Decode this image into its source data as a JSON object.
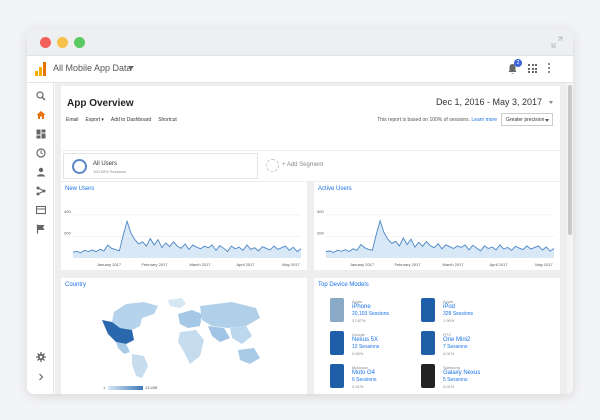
{
  "app": {
    "account_name": "All Mobile App Data",
    "notification_count": "2"
  },
  "report": {
    "title": "App Overview",
    "date_range": "Dec 1, 2016 - May 3, 2017",
    "toolbar": [
      "Email",
      "Export ▾",
      "Add to Dashboard",
      "Shortcut"
    ],
    "sample_text": "This report is based on 100% of sessions.",
    "learn_more": "Learn more",
    "precision_select": "Greater precision"
  },
  "segments": {
    "active_name": "All Users",
    "active_sub": "100.00% Sessions",
    "add_label": "+ Add Segment"
  },
  "cards": {
    "new_users_title": "New Users",
    "active_users_title": "Active Users",
    "country_title": "Country",
    "devices_title": "Top Device Models"
  },
  "map_legend": {
    "min": "1",
    "max": "13,498"
  },
  "chart_data": [
    {
      "type": "area",
      "title": "New Users",
      "ylabel": "",
      "ylim": [
        0,
        500
      ],
      "y_ticks": [
        "400",
        "200"
      ],
      "x_ticks": [
        "January 2017",
        "February 2017",
        "March 2017",
        "April 2017",
        "May 2017"
      ],
      "series": [
        {
          "values": [
            55,
            62,
            48,
            70,
            60,
            75,
            58,
            82,
            65,
            120,
            90,
            78,
            68,
            210,
            340,
            230,
            170,
            130,
            150,
            110,
            180,
            120,
            170,
            95,
            140,
            105,
            150,
            110,
            90,
            130,
            80,
            120,
            100,
            85,
            110,
            95,
            120,
            70,
            115,
            90,
            60,
            110,
            85,
            100,
            70,
            120,
            80,
            95,
            65,
            105,
            90,
            75,
            110,
            80,
            95,
            110,
            70,
            100,
            60,
            85
          ]
        }
      ]
    },
    {
      "type": "area",
      "title": "Active Users",
      "ylabel": "",
      "ylim": [
        0,
        500
      ],
      "y_ticks": [
        "400",
        "200"
      ],
      "x_ticks": [
        "January 2017",
        "February 2017",
        "March 2017",
        "April 2017",
        "May 2017"
      ],
      "series": [
        {
          "values": [
            60,
            65,
            52,
            72,
            62,
            78,
            60,
            85,
            70,
            125,
            95,
            80,
            72,
            215,
            345,
            235,
            175,
            135,
            155,
            112,
            185,
            125,
            175,
            100,
            145,
            108,
            152,
            115,
            95,
            132,
            85,
            122,
            105,
            88,
            112,
            98,
            122,
            75,
            118,
            92,
            65,
            112,
            88,
            102,
            75,
            122,
            82,
            98,
            70,
            108,
            92,
            78,
            112,
            82,
            98,
            112,
            74,
            102,
            64,
            88
          ]
        }
      ]
    }
  ],
  "devices": [
    {
      "brand": "Apple",
      "model": "iPhone",
      "sessions": "20,103 Sessions",
      "pct": "37.87%",
      "color": "#8aa9c6"
    },
    {
      "brand": "Apple",
      "model": "iPod",
      "sessions": "328 Sessions",
      "pct": "1.90%",
      "color": "#1f5ea8"
    },
    {
      "brand": "Google",
      "model": "Nexus 5X",
      "sessions": "12 Sessions",
      "pct": "0.58%",
      "color": "#1f5ea8"
    },
    {
      "brand": "HTC",
      "model": "One Mini2",
      "sessions": "7 Sessions",
      "pct": "0.01%",
      "color": "#1f5ea8"
    },
    {
      "brand": "Motorola",
      "model": "Moto G4",
      "sessions": "6 Sessions",
      "pct": "0.01%",
      "color": "#1f5ea8"
    },
    {
      "brand": "Samsung",
      "model": "Galaxy Nexus",
      "sessions": "5 Sessions",
      "pct": "0.01%",
      "color": "#222222"
    }
  ]
}
